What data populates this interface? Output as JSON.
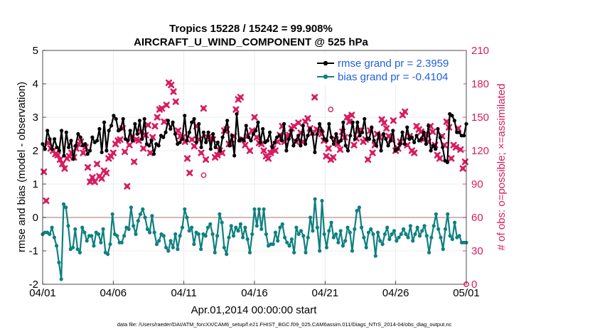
{
  "chart_data": {
    "type": "line",
    "title_line1": "Tropics 15228 / 15242 = 99.908%",
    "title_line2": "AIRCRAFT_U_WIND_COMPONENT @ 525 hPa",
    "xlabel": "Apr.01,2014 00:00:00 start",
    "ylabel_left": "rmse and bias (model - observation)",
    "ylabel_right": "# of obs: o=possible; ×=assimilated",
    "footer": "data file: /Users/raeder/DAI/ATM_forcXX/CAM6_setup/f.e21.FHIST_BGC.f09_025.CAM6assim.011/Diags_NTrS_2014-04/obs_diag_output.nc",
    "x_ticks": [
      1,
      6,
      11,
      16,
      21,
      26,
      31
    ],
    "x_tick_labels": [
      "04/01",
      "04/06",
      "04/11",
      "04/16",
      "04/21",
      "04/26",
      "05/01"
    ],
    "xlim": [
      1,
      31
    ],
    "ylim_left": [
      -2,
      5
    ],
    "y_ticks_left": [
      "-2",
      "-1",
      "0",
      "1",
      "2",
      "3",
      "4",
      "5"
    ],
    "ylim_right": [
      0,
      210
    ],
    "y_ticks_right": [
      "0",
      "30",
      "60",
      "90",
      "120",
      "150",
      "180",
      "210"
    ],
    "colors": {
      "rmse": "#000000",
      "bias": "#0f8080",
      "obs": "#d81b60",
      "legend_text": "#1f5fe0",
      "zero_line": "#c9a0a0"
    },
    "legend": {
      "placement": "top-right",
      "rmse": "rmse grand pr = 2.3959",
      "bias": "bias grand pr = -0.4104"
    },
    "series": [
      {
        "name": "rmse",
        "values": [
          2.2,
          2.05,
          2.6,
          2.35,
          2.05,
          2.35,
          2.1,
          2.0,
          2.6,
          1.85,
          2.55,
          2.1,
          2.3,
          1.75,
          2.15,
          2.5,
          2.4,
          2.15,
          2.2,
          1.9,
          2.0,
          2.4,
          2.25,
          2.3,
          2.65,
          1.95,
          2.85,
          2.0,
          2.6,
          2.75,
          3.05,
          2.95,
          2.6,
          2.65,
          2.95,
          2.35,
          2.3,
          2.6,
          2.3,
          2.8,
          2.5,
          2.9,
          2.35,
          2.95,
          2.2,
          2.15,
          2.3,
          1.9,
          2.2,
          2.15,
          2.45,
          2.4,
          2.55,
          2.9,
          2.65,
          2.85,
          2.5,
          2.2,
          2.25,
          2.35,
          3.05,
          2.3,
          2.55,
          2.85,
          2.95,
          2.25,
          2.8,
          2.1,
          2.55,
          2.25,
          2.55,
          2.05,
          2.5,
          2.1,
          2.25,
          2.0,
          2.4,
          2.6,
          2.9,
          2.15,
          2.45,
          1.85,
          3.1,
          2.3,
          2.35,
          2.3,
          2.75,
          2.4,
          2.3,
          2.5,
          2.6,
          2.85,
          2.25,
          2.65,
          2.25,
          2.3,
          2.55,
          2.1,
          2.25,
          2.4,
          2.45,
          2.3,
          2.8,
          2.0,
          2.35,
          2.6,
          2.15,
          2.3,
          2.45,
          2.15,
          2.75,
          2.2,
          2.45,
          2.65,
          2.5,
          1.95,
          2.5,
          2.8,
          2.6,
          2.35,
          2.3,
          2.8,
          2.4,
          2.2,
          2.5,
          2.25,
          2.3,
          2.85,
          2.15,
          2.0,
          2.45,
          2.85,
          2.35,
          2.85,
          2.45,
          2.55,
          2.95,
          2.35,
          2.35,
          2.7,
          2.3,
          2.15,
          2.5,
          2.0,
          2.5,
          2.35,
          2.15,
          2.3,
          2.6,
          2.0,
          2.05,
          2.2,
          2.55,
          2.2,
          2.7,
          2.35,
          2.4,
          2.25,
          2.45,
          2.3,
          2.35,
          2.55,
          2.2,
          2.75,
          2.0,
          2.15,
          2.05,
          2.65,
          2.4,
          2.1,
          1.7,
          1.65,
          3.1,
          3.05,
          2.9,
          2.55,
          2.55,
          2.45,
          2.45,
          2.8
        ]
      },
      {
        "name": "bias",
        "values": [
          -0.5,
          -0.45,
          -0.45,
          -0.5,
          -0.3,
          -0.6,
          -0.85,
          -1.35,
          -1.85,
          0.4,
          0.3,
          -0.25,
          -0.95,
          -0.9,
          -0.35,
          -0.95,
          -1.05,
          -0.3,
          -0.45,
          -0.7,
          -0.55,
          -0.55,
          -0.85,
          -0.45,
          -0.5,
          -0.75,
          -0.35,
          -1.05,
          -1.1,
          -0.8,
          0.1,
          -0.5,
          -0.55,
          -0.75,
          -0.75,
          -0.55,
          -0.3,
          -0.35,
          0.3,
          -0.25,
          -0.5,
          -0.1,
          0.1,
          0.25,
          0.0,
          -0.35,
          -0.45,
          0.05,
          -0.45,
          -0.8,
          -0.7,
          -0.5,
          -0.55,
          -0.9,
          -1.0,
          -0.7,
          -0.9,
          -0.5,
          -0.95,
          -0.55,
          -0.3,
          0.25,
          0.0,
          -0.4,
          -0.3,
          -0.8,
          -0.45,
          -0.5,
          -0.95,
          -0.5,
          -0.55,
          -0.3,
          -0.2,
          -0.5,
          -1.05,
          -0.55,
          0.1,
          -0.15,
          -0.9,
          -1.1,
          -0.6,
          -0.25,
          -0.55,
          -0.3,
          -0.4,
          -0.2,
          -0.6,
          -0.3,
          -0.65,
          -1.05,
          -0.5,
          0.25,
          -0.25,
          0.25,
          -0.35,
          0.25,
          -0.5,
          -0.85,
          -0.8,
          -0.8,
          -0.45,
          -0.7,
          -0.3,
          -0.2,
          -0.6,
          -0.75,
          -0.85,
          -0.65,
          -1.05,
          -0.3,
          -0.5,
          -0.4,
          -0.55,
          -1.05,
          -0.6,
          0.0,
          -0.4,
          0.55,
          -0.3,
          -1.0,
          0.5,
          -0.5,
          -0.9,
          -0.4,
          -0.15,
          -0.6,
          -0.5,
          -0.75,
          -0.4,
          -0.85,
          -0.7,
          -0.3,
          -0.45,
          -1.0,
          -0.35,
          0.2,
          0.3,
          -0.3,
          -0.6,
          -0.9,
          -0.45,
          -0.35,
          -0.5,
          -1.15,
          -0.45,
          -0.7,
          -0.8,
          -0.5,
          -0.3,
          -0.65,
          -0.5,
          -0.4,
          -0.7,
          -0.6,
          -0.5,
          -0.35,
          -0.5,
          -0.6,
          -0.25,
          -0.7,
          -0.5,
          -0.3,
          -0.55,
          -0.4,
          -0.25,
          -0.55,
          -1.05,
          -0.6,
          -0.25,
          0.1,
          -0.35,
          -0.6,
          -0.95,
          -0.35,
          0.1,
          -0.55,
          -0.65,
          -0.15,
          -0.6,
          -0.55,
          -0.75,
          -0.75,
          -0.75
        ]
      },
      {
        "name": "obs_assimilated",
        "values": [
          101,
          75,
          127,
          122,
          120,
          117,
          116,
          112,
          108,
          104,
          113,
          115,
          118,
          114,
          122,
          126,
          128,
          118,
          123,
          105,
          92,
          96,
          92,
          108,
          97,
          95,
          102,
          100,
          113,
          115,
          118,
          126,
          129,
          130,
          140,
          119,
          88,
          125,
          132,
          110,
          130,
          129,
          137,
          122,
          134,
          143,
          118,
          132,
          142,
          150,
          157,
          158,
          146,
          161,
          181,
          179,
          173,
          164,
          138,
          133,
          132,
          128,
          113,
          100,
          130,
          124,
          142,
          130,
          118,
          158,
          112,
          132,
          131,
          130,
          114,
          116,
          120,
          118,
          138,
          139,
          126,
          126,
          133,
          157,
          166,
          168,
          130,
          125,
          133,
          120,
          138,
          150,
          132,
          127,
          126,
          120,
          115,
          113,
          118,
          122,
          120,
          128,
          134,
          142,
          128,
          133,
          134,
          140,
          142,
          128,
          145,
          136,
          128,
          146,
          149,
          140,
          136,
          168,
          139,
          138,
          135,
          129,
          115,
          122,
          112,
          114,
          130,
          126,
          121,
          137,
          132,
          150,
          146,
          152,
          125,
          131,
          138,
          138,
          128,
          130,
          112,
          138,
          118,
          125,
          135,
          132,
          148,
          145,
          140,
          133,
          130,
          147,
          120,
          122,
          128,
          152,
          155,
          125,
          133,
          120,
          118,
          142,
          139,
          137,
          130,
          135,
          128,
          142,
          137,
          125,
          116,
          113,
          133,
          125,
          146,
          141,
          113,
          125,
          123,
          140,
          121,
          104,
          110
        ]
      },
      {
        "name": "obs_possible",
        "values": [
          101,
          75,
          127,
          122,
          120,
          117,
          116,
          112,
          108,
          104,
          113,
          115,
          118,
          114,
          122,
          126,
          128,
          118,
          123,
          105,
          92,
          96,
          92,
          108,
          97,
          95,
          102,
          100,
          113,
          115,
          118,
          126,
          129,
          130,
          140,
          119,
          88,
          125,
          132,
          110,
          130,
          129,
          137,
          122,
          134,
          143,
          118,
          132,
          142,
          150,
          157,
          158,
          146,
          161,
          181,
          179,
          173,
          164,
          138,
          133,
          132,
          128,
          113,
          100,
          130,
          124,
          142,
          130,
          118,
          158,
          112,
          132,
          131,
          130,
          114,
          116,
          120,
          118,
          138,
          139,
          126,
          126,
          133,
          157,
          166,
          168,
          130,
          125,
          133,
          120,
          138,
          150,
          132,
          127,
          126,
          120,
          115,
          113,
          118,
          122,
          120,
          128,
          134,
          142,
          128,
          133,
          134,
          140,
          142,
          128,
          145,
          136,
          128,
          146,
          149,
          140,
          136,
          168,
          139,
          138,
          135,
          129,
          115,
          122,
          112,
          114,
          130,
          126,
          121,
          137,
          132,
          150,
          146,
          152,
          125,
          131,
          138,
          138,
          128,
          130,
          112,
          138,
          118,
          125,
          135,
          132,
          148,
          145,
          140,
          133,
          130,
          147,
          120,
          122,
          128,
          152,
          155,
          125,
          133,
          120,
          118,
          142,
          139,
          137,
          130,
          135,
          128,
          142,
          137,
          125,
          116,
          113,
          133,
          125,
          146,
          141,
          113,
          125,
          123,
          140,
          121,
          104,
          110
        ]
      }
    ],
    "obs_possible_extra": [
      {
        "x": 12.4,
        "y": 98
      },
      {
        "x": 21.4,
        "y": 157
      },
      {
        "x": 31.0,
        "y": 0
      }
    ]
  }
}
